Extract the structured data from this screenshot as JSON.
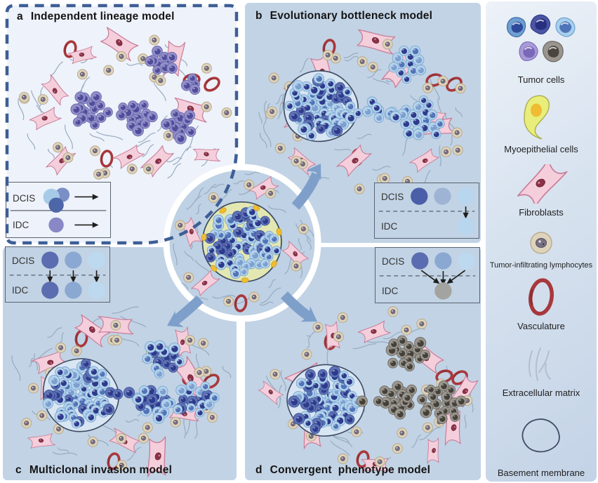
{
  "figure": {
    "panels": [
      {
        "id": "a",
        "letter": "a",
        "title": "Independent lineage model"
      },
      {
        "id": "b",
        "letter": "b",
        "title": "Evolutionary bottleneck model"
      },
      {
        "id": "c",
        "letter": "c",
        "title": "Multiclonal invasion model"
      },
      {
        "id": "d",
        "letter": "d",
        "title": "Convergent  phenotype model"
      }
    ],
    "insets": {
      "a": {
        "dcis_label": "DCIS",
        "idc_label": "IDC",
        "type": "independent",
        "dcis_cluster_colors": [
          "#a6cbe9",
          "#7b8fc7",
          "#4c66a8"
        ],
        "idc_color": "#8a87c6"
      },
      "b": {
        "dcis_label": "DCIS",
        "idc_label": "IDC",
        "type": "bottleneck",
        "dcis_colors": [
          "#4a5fa8",
          "#9fb4d4",
          "#b8d6ee"
        ],
        "idc_color": "#b8d6ee"
      },
      "c": {
        "dcis_label": "DCIS",
        "idc_label": "IDC",
        "type": "multiclonal",
        "dcis_colors": [
          "#5b6cb0",
          "#8ba8d2",
          "#bdd9f0"
        ],
        "idc_colors": [
          "#5b6cb0",
          "#8ba8d2",
          "#bdd9f0"
        ]
      },
      "d": {
        "dcis_label": "DCIS",
        "idc_label": "IDC",
        "type": "convergent",
        "dcis_colors": [
          "#5b6cb0",
          "#8ba8d2",
          "#bdd9f0"
        ],
        "idc_color": "#a3a39f"
      }
    },
    "legend": {
      "items": [
        {
          "name": "tumor-cells",
          "label": "Tumor cells"
        },
        {
          "name": "myoepithelial-cells",
          "label": "Myoepithelial cells"
        },
        {
          "name": "fibroblasts",
          "label": "Fibroblasts"
        },
        {
          "name": "tumor-infiltrating-lymphocytes",
          "label": "Tumor-infiltrating lymphocytes"
        },
        {
          "name": "vasculature",
          "label": "Vasculature"
        },
        {
          "name": "extracellular-matrix",
          "label": "Extracellular matrix"
        },
        {
          "name": "basement-membrane",
          "label": "Basement membrane"
        }
      ]
    },
    "colors": {
      "cells": {
        "light_body": "#b3d4ec",
        "light_edge": "#7da6d2",
        "nucleus_navy": "#2e3a8c",
        "nucleus_mid": "#5273b8",
        "nucleus_steel": "#7d9fd0",
        "dark_body": "#5e73b5",
        "dark_edge": "#3c4f96",
        "purple_body": "#928fca",
        "purple_edge": "#6c69aa",
        "purple_nucleus": "#504c9b",
        "gray_body": "#9c9890",
        "gray_edge": "#6e6a62",
        "gray_nucleus": "#44403a"
      },
      "stroma": {
        "ecm": "#94aabf",
        "lymph_body": "#ded3bb",
        "lymph_edge": "#b9aa8d",
        "lymph_nucleus": "#787083",
        "fibroblast_body": "#f5cedb",
        "fibroblast_edge": "#c87e99",
        "fibroblast_nucleus": "#8c3247",
        "vessel": "#a8383c"
      },
      "structure": {
        "membrane": "#3c4a63",
        "dcis_fill": "#d8e5f2",
        "myoepithelial_band": "#e3e7b2",
        "myoepithelial_body": "#e9ee7a",
        "myoepithelial_nucleus": "#f0bc34",
        "panel_bg": "#c2d3e5",
        "panel_a_bg": "#eef2fa",
        "dashed_border": "#3d5e96",
        "arrow": "#7e9fca",
        "center_bg": "#bfd1e4",
        "inset_border": "#5a6472"
      },
      "legend_cells": [
        {
          "body": "#6f9fd0",
          "edge": "#3f6cb0",
          "nucleus": "#2d4a9a"
        },
        {
          "body": "#4a55a5",
          "edge": "#323c86",
          "nucleus": "#272f7e"
        },
        {
          "body": "#a8d0ec",
          "edge": "#6fa2d2",
          "nucleus": "#4f74b8"
        },
        {
          "body": "#a89ad6",
          "edge": "#7f6fc0",
          "nucleus": "#7a68b8"
        },
        {
          "body": "#9a968f",
          "edge": "#6b675f",
          "nucleus": "#4a463f"
        }
      ]
    }
  }
}
